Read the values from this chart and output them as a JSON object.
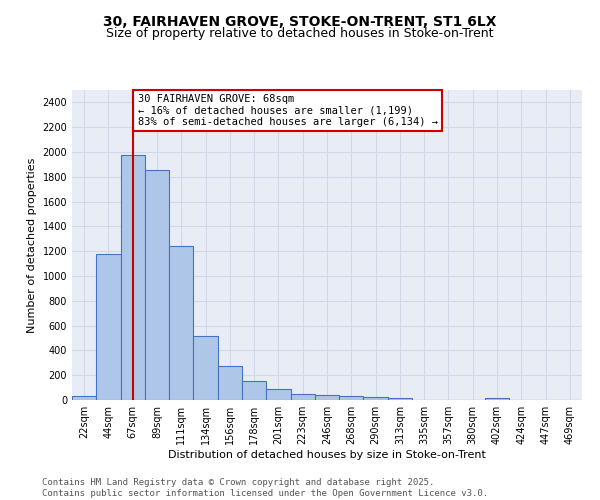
{
  "title_line1": "30, FAIRHAVEN GROVE, STOKE-ON-TRENT, ST1 6LX",
  "title_line2": "Size of property relative to detached houses in Stoke-on-Trent",
  "xlabel": "Distribution of detached houses by size in Stoke-on-Trent",
  "ylabel": "Number of detached properties",
  "categories": [
    "22sqm",
    "44sqm",
    "67sqm",
    "89sqm",
    "111sqm",
    "134sqm",
    "156sqm",
    "178sqm",
    "201sqm",
    "223sqm",
    "246sqm",
    "268sqm",
    "290sqm",
    "313sqm",
    "335sqm",
    "357sqm",
    "380sqm",
    "402sqm",
    "424sqm",
    "447sqm",
    "469sqm"
  ],
  "values": [
    30,
    1175,
    1975,
    1855,
    1240,
    515,
    275,
    155,
    90,
    50,
    40,
    35,
    22,
    18,
    0,
    0,
    0,
    20,
    0,
    0,
    0
  ],
  "bar_color": "#aec6e8",
  "bar_edge_color": "#4472c4",
  "highlight_bar_index": 2,
  "highlight_line_color": "#cc0000",
  "annotation_text": "30 FAIRHAVEN GROVE: 68sqm\n← 16% of detached houses are smaller (1,199)\n83% of semi-detached houses are larger (6,134) →",
  "annotation_box_color": "#cc0000",
  "ylim": [
    0,
    2500
  ],
  "yticks": [
    0,
    200,
    400,
    600,
    800,
    1000,
    1200,
    1400,
    1600,
    1800,
    2000,
    2200,
    2400
  ],
  "grid_color": "#d0d8e8",
  "background_color": "#e8edf5",
  "footer_text": "Contains HM Land Registry data © Crown copyright and database right 2025.\nContains public sector information licensed under the Open Government Licence v3.0.",
  "title_fontsize": 10,
  "subtitle_fontsize": 9,
  "axis_fontsize": 8,
  "tick_fontsize": 7,
  "footer_fontsize": 6.5,
  "annotation_fontsize": 7.5
}
